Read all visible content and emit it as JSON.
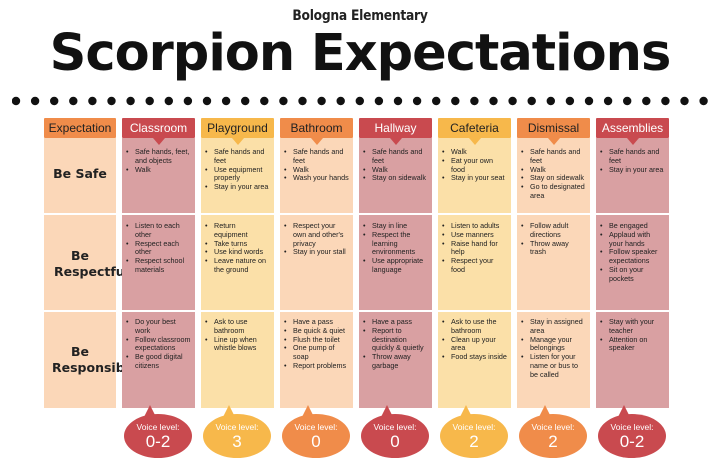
{
  "school": "Bologna Elementary",
  "title": "Scorpion Expectations",
  "header_first": "Expectation",
  "rows": [
    "Be Safe",
    "Be Respectful",
    "Be Responsible"
  ],
  "columns": [
    {
      "name": "Classroom",
      "safe": [
        "Safe hands, feet, and objects",
        "Walk"
      ],
      "respectful": [
        "Listen to each other",
        "Respect each other",
        "Respect school materials"
      ],
      "responsible": [
        "Do your best work",
        "Follow classroom expectations",
        "Be good digital citizens"
      ],
      "voice_label": "Voice level:",
      "voice_value": "0-2"
    },
    {
      "name": "Playground",
      "safe": [
        "Safe hands and feet",
        "Use equipment properly",
        "Stay in your area"
      ],
      "respectful": [
        "Return equipment",
        "Take turns",
        "Use kind words",
        "Leave nature on the ground"
      ],
      "responsible": [
        "Ask to use bathroom",
        "Line up when whistle blows"
      ],
      "voice_label": "Voice level:",
      "voice_value": "3"
    },
    {
      "name": "Bathroom",
      "safe": [
        "Safe hands and feet",
        "Walk",
        "Wash your hands"
      ],
      "respectful": [
        "Respect your own and other's privacy",
        "Stay in your stall"
      ],
      "responsible": [
        "Have a pass",
        "Be quick & quiet",
        "Flush the toilet",
        "One pump of soap",
        "Report problems"
      ],
      "voice_label": "Voice level:",
      "voice_value": "0"
    },
    {
      "name": "Hallway",
      "safe": [
        "Safe hands and feet",
        "Walk",
        "Stay on sidewalk"
      ],
      "respectful": [
        "Stay in line",
        "Respect the learning environments",
        "Use appropriate language"
      ],
      "responsible": [
        "Have a pass",
        "Report to destination quickly & quietly",
        "Throw away garbage"
      ],
      "voice_label": "Voice level:",
      "voice_value": "0"
    },
    {
      "name": "Cafeteria",
      "safe": [
        "Walk",
        "Eat your own food",
        "Stay in your seat"
      ],
      "respectful": [
        "Listen to adults",
        "Use manners",
        "Raise hand for help",
        "Respect your food"
      ],
      "responsible": [
        "Ask to use the bathroom",
        "Clean up your area",
        "Food stays inside"
      ],
      "voice_label": "Voice level:",
      "voice_value": "2"
    },
    {
      "name": "Dismissal",
      "safe": [
        "Safe hands and feet",
        "Walk",
        "Stay on sidewalk",
        "Go to designated area"
      ],
      "respectful": [
        "Follow adult directions",
        "Throw away trash"
      ],
      "responsible": [
        "Stay in assigned area",
        "Manage your belongings",
        "Listen for your name or bus to be called"
      ],
      "voice_label": "Voice level:",
      "voice_value": "2"
    },
    {
      "name": "Assemblies",
      "safe": [
        "Safe hands and feet",
        "Stay in your area"
      ],
      "respectful": [
        "Be engaged",
        "Applaud with your hands",
        "Follow speaker expectations",
        "Sit on your pockets"
      ],
      "responsible": [
        "Stay with your teacher",
        "Attention on speaker"
      ],
      "voice_label": "Voice level:",
      "voice_value": "0-2"
    }
  ],
  "colors": {
    "header_first": "#f08c4a",
    "first_bg": "#fbd7b8",
    "headers": [
      "#c94a4f",
      "#f7b84b",
      "#f08c4a",
      "#c94a4f",
      "#f7b84b",
      "#f08c4a",
      "#c94a4f"
    ],
    "bodies": [
      "#d9a0a2",
      "#fbe0a8",
      "#fbd7b8",
      "#d9a0a2",
      "#fbe0a8",
      "#fbd7b8",
      "#d9a0a2"
    ]
  }
}
